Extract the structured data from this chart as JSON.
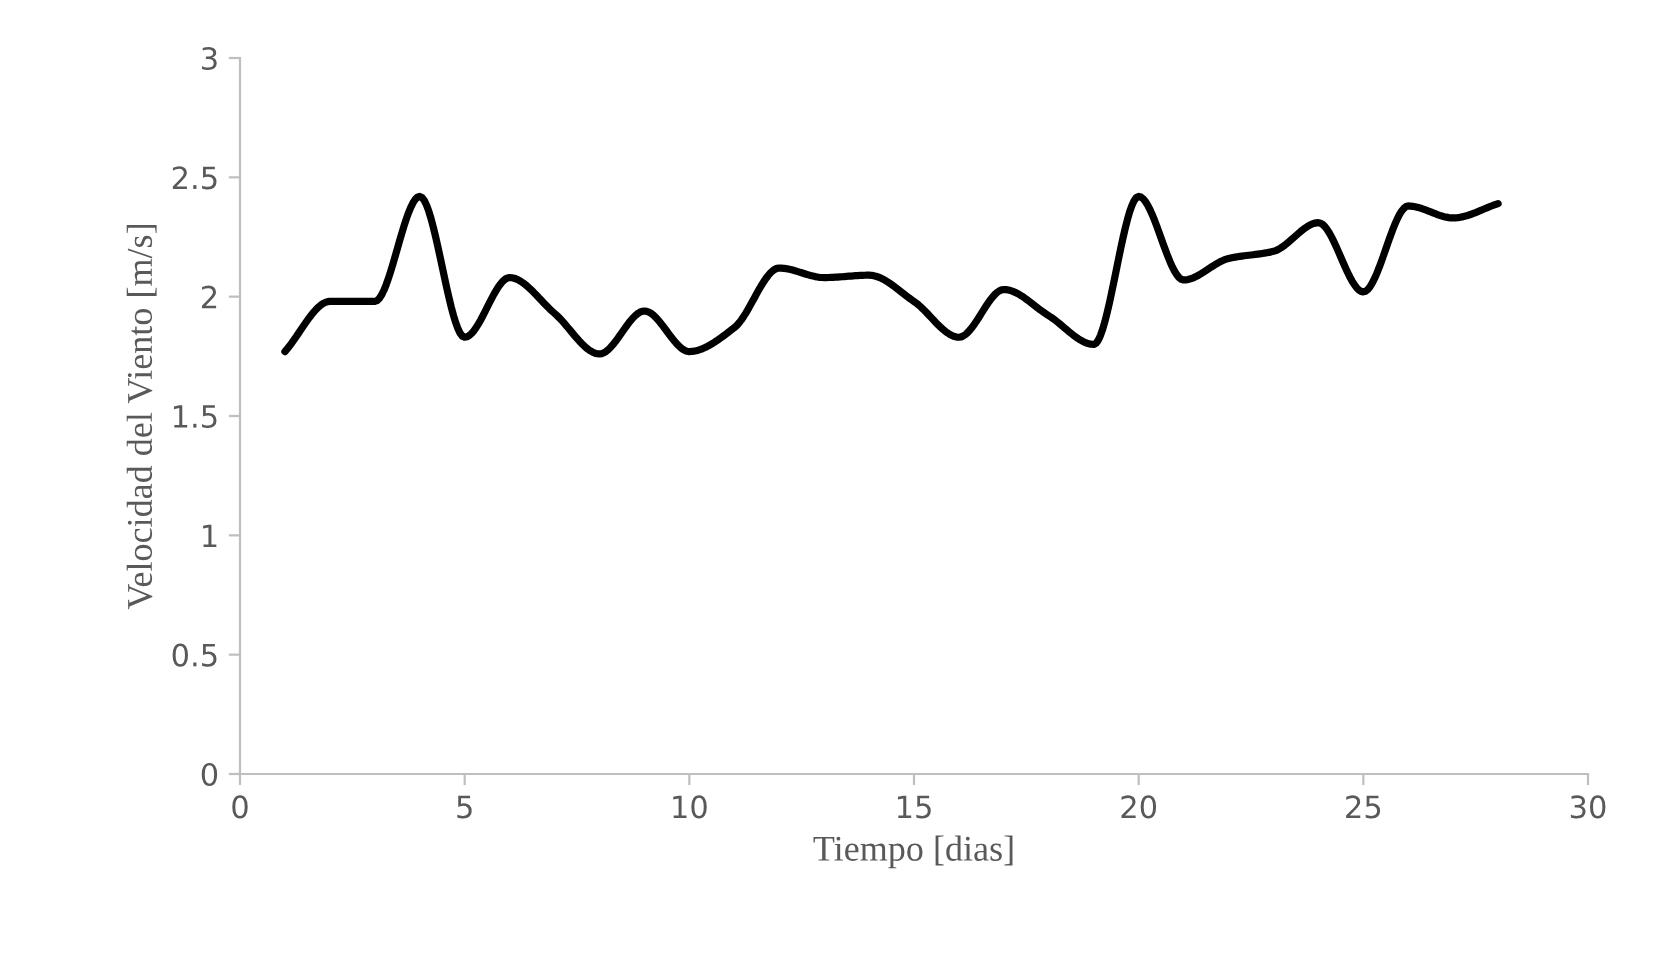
{
  "chart_data": {
    "type": "line",
    "xlabel": "Tiempo [dias]",
    "ylabel": "Velocidad del Viento [m/s]",
    "x": [
      1,
      2,
      3,
      4,
      5,
      6,
      7,
      8,
      9,
      10,
      11,
      12,
      13,
      14,
      15,
      16,
      17,
      18,
      19,
      20,
      21,
      22,
      23,
      24,
      25,
      26,
      27,
      28
    ],
    "series": [
      {
        "color": "#000000",
        "values": [
          1.77,
          1.98,
          1.98,
          2.42,
          1.83,
          2.08,
          1.93,
          1.76,
          1.94,
          1.77,
          1.87,
          2.12,
          2.08,
          2.09,
          1.98,
          1.83,
          2.03,
          1.92,
          1.8,
          2.42,
          2.07,
          2.16,
          2.19,
          2.31,
          2.02,
          2.38,
          2.33,
          2.39
        ]
      }
    ],
    "xlim": [
      0,
      30
    ],
    "xticks": [
      0,
      5,
      10,
      15,
      20,
      25,
      30
    ],
    "ylim": [
      0,
      3
    ],
    "yticks": [
      0,
      0.5,
      1,
      1.5,
      2,
      2.5,
      3
    ],
    "grid": false,
    "marker": "none",
    "line_style": "solid"
  }
}
